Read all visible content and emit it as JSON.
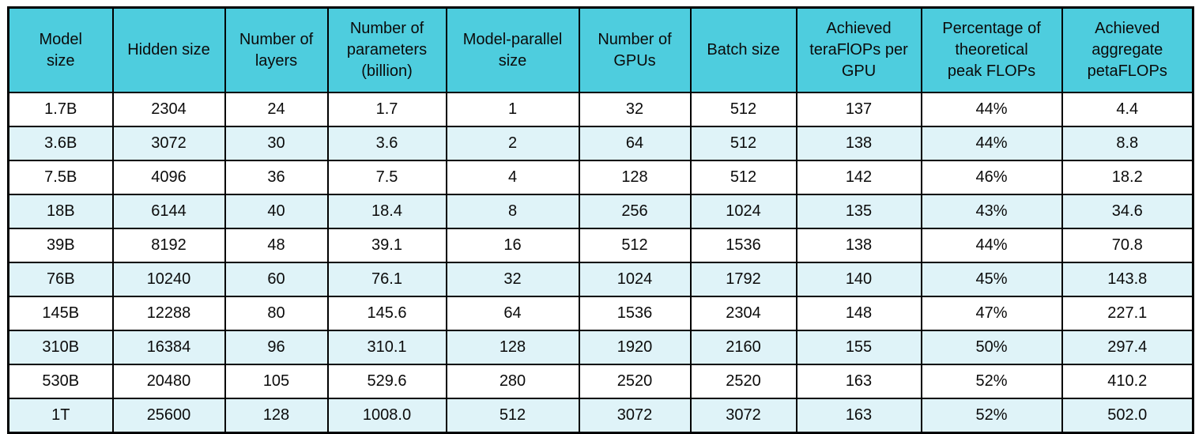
{
  "colors": {
    "header_bg": "#4ECDDE",
    "row_bg": "#FFFFFF",
    "row_alt_bg": "#DFF3F8",
    "border": "#000000"
  },
  "table": {
    "columns": [
      {
        "label": "Model\nsize"
      },
      {
        "label": "Hidden size"
      },
      {
        "label": "Number of\nlayers"
      },
      {
        "label": "Number of\nparameters\n(billion)"
      },
      {
        "label": "Model-parallel\nsize"
      },
      {
        "label": "Number of\nGPUs"
      },
      {
        "label": "Batch size"
      },
      {
        "label": "Achieved\nteraFlOPs per\nGPU"
      },
      {
        "label": "Percentage of\ntheoretical\npeak FLOPs"
      },
      {
        "label": "Achieved\naggregate\npetaFLOPs"
      }
    ],
    "rows": [
      [
        "1.7B",
        "2304",
        "24",
        "1.7",
        "1",
        "32",
        "512",
        "137",
        "44%",
        "4.4"
      ],
      [
        "3.6B",
        "3072",
        "30",
        "3.6",
        "2",
        "64",
        "512",
        "138",
        "44%",
        "8.8"
      ],
      [
        "7.5B",
        "4096",
        "36",
        "7.5",
        "4",
        "128",
        "512",
        "142",
        "46%",
        "18.2"
      ],
      [
        "18B",
        "6144",
        "40",
        "18.4",
        "8",
        "256",
        "1024",
        "135",
        "43%",
        "34.6"
      ],
      [
        "39B",
        "8192",
        "48",
        "39.1",
        "16",
        "512",
        "1536",
        "138",
        "44%",
        "70.8"
      ],
      [
        "76B",
        "10240",
        "60",
        "76.1",
        "32",
        "1024",
        "1792",
        "140",
        "45%",
        "143.8"
      ],
      [
        "145B",
        "12288",
        "80",
        "145.6",
        "64",
        "1536",
        "2304",
        "148",
        "47%",
        "227.1"
      ],
      [
        "310B",
        "16384",
        "96",
        "310.1",
        "128",
        "1920",
        "2160",
        "155",
        "50%",
        "297.4"
      ],
      [
        "530B",
        "20480",
        "105",
        "529.6",
        "280",
        "2520",
        "2520",
        "163",
        "52%",
        "410.2"
      ],
      [
        "1T",
        "25600",
        "128",
        "1008.0",
        "512",
        "3072",
        "3072",
        "163",
        "52%",
        "502.0"
      ]
    ]
  }
}
